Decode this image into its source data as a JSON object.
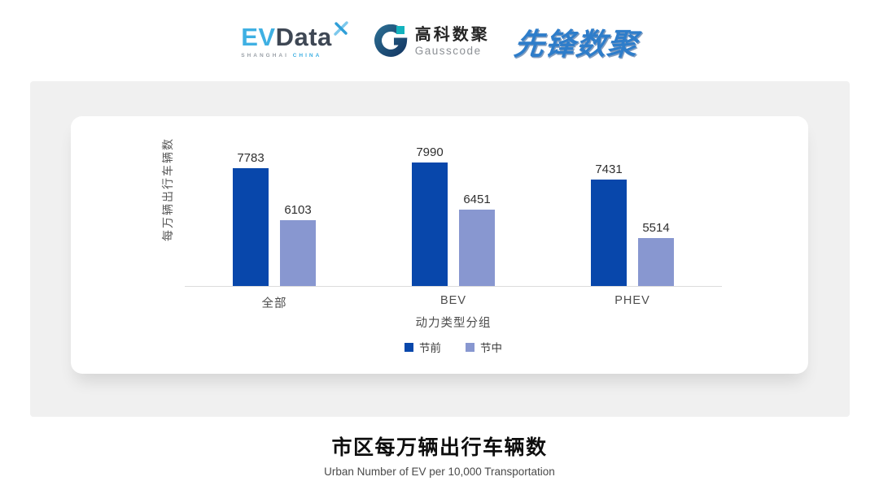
{
  "header": {
    "evdata": {
      "ev": "EV",
      "data": "Data",
      "sub_left": "SHANGHAI",
      "sub_right": "CHINA"
    },
    "gausscode": {
      "cn": "高科数聚",
      "en": "Gausscode"
    },
    "xianfeng": {
      "text": "先锋数聚"
    }
  },
  "chart_data": {
    "type": "bar",
    "categories": [
      "全部",
      "BEV",
      "PHEV"
    ],
    "series": [
      {
        "name": "节前",
        "color": "#0847ab",
        "values": [
          7783,
          7990,
          7431
        ]
      },
      {
        "name": "节中",
        "color": "#8897d0",
        "values": [
          6103,
          6451,
          5514
        ]
      }
    ],
    "xlabel": "动力类型分组",
    "ylabel": "每万辆出行车辆数",
    "ylim": [
      3950,
      9300
    ],
    "grid": false,
    "legend_position": "bottom",
    "value_labels": true
  },
  "footer": {
    "title": "市区每万辆出行车辆数",
    "subtitle": "Urban Number of EV per 10,000 Transportation"
  },
  "colors": {
    "series_pre": "#0847ab",
    "series_mid": "#8897d0",
    "panel_bg": "#f0f0f0",
    "card_bg": "#ffffff",
    "axis_line": "#dcdcdc",
    "brand_lightblue": "#3fb0e3",
    "brand_darkslate": "#3e4754",
    "brand_blue": "#2e7dca",
    "gauss_navy": "#1d4e79",
    "gauss_teal": "#13b3be"
  }
}
